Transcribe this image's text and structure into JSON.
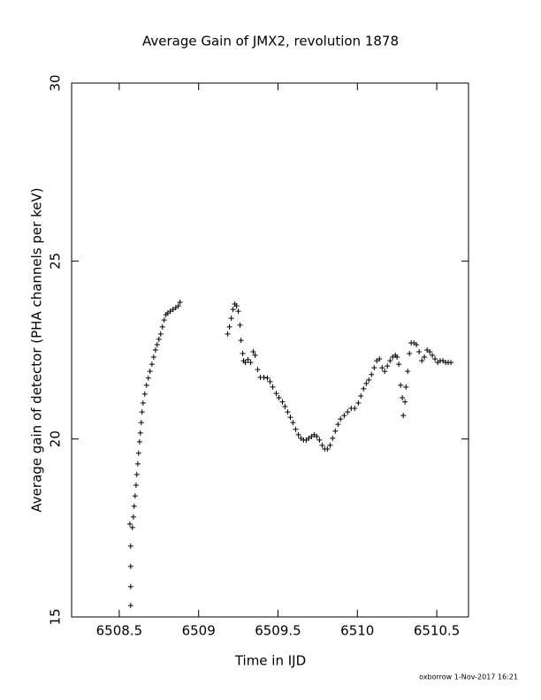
{
  "chart_data": {
    "type": "scatter",
    "title": "Average Gain of JMX2, revolution 1878",
    "x_label": "Time in IJD",
    "y_label": "Average gain of detector (PHA channels per keV)",
    "footer": "oxborrow  1-Nov-2017 16:21",
    "color": "#000000",
    "marker": "plus",
    "xlim": [
      6508.2,
      6510.7
    ],
    "ylim": [
      15,
      30
    ],
    "xticks": [
      6508.5,
      6509,
      6509.5,
      6510,
      6510.5
    ],
    "yticks": [
      15,
      20,
      25,
      30
    ],
    "x": [
      6508.572,
      6508.572,
      6508.572,
      6508.572,
      6508.567,
      6508.583,
      6508.589,
      6508.594,
      6508.6,
      6508.606,
      6508.611,
      6508.617,
      6508.622,
      6508.628,
      6508.633,
      6508.639,
      6508.644,
      6508.65,
      6508.661,
      6508.672,
      6508.683,
      6508.694,
      6508.706,
      6508.717,
      6508.728,
      6508.739,
      6508.75,
      6508.761,
      6508.772,
      6508.783,
      6508.794,
      6508.806,
      6508.822,
      6508.839,
      6508.856,
      6508.872,
      6508.883,
      6509.183,
      6509.194,
      6509.206,
      6509.217,
      6509.228,
      6509.239,
      6509.25,
      6509.261,
      6509.267,
      6509.278,
      6509.283,
      6509.294,
      6509.311,
      6509.328,
      6509.344,
      6509.356,
      6509.372,
      6509.389,
      6509.411,
      6509.433,
      6509.45,
      6509.467,
      6509.489,
      6509.506,
      6509.528,
      6509.544,
      6509.561,
      6509.578,
      6509.594,
      6509.611,
      6509.628,
      6509.644,
      6509.661,
      6509.678,
      6509.694,
      6509.711,
      6509.728,
      6509.744,
      6509.761,
      6509.778,
      6509.794,
      6509.811,
      6509.828,
      6509.844,
      6509.861,
      6509.878,
      6509.894,
      6509.917,
      6509.939,
      6509.961,
      6509.983,
      6510.006,
      6510.022,
      6510.039,
      6510.056,
      6510.072,
      6510.089,
      6510.106,
      6510.122,
      6510.139,
      6510.156,
      6510.172,
      6510.189,
      6510.206,
      6510.222,
      6510.239,
      6510.25,
      6510.261,
      6510.272,
      6510.283,
      6510.289,
      6510.3,
      6510.306,
      6510.317,
      6510.328,
      6510.339,
      6510.356,
      6510.372,
      6510.389,
      6510.406,
      6510.422,
      6510.439,
      6510.456,
      6510.472,
      6510.489,
      6510.506,
      6510.522,
      6510.539,
      6510.556,
      6510.572,
      6510.589
    ],
    "values": [
      15.32,
      15.85,
      16.42,
      16.99,
      17.61,
      17.51,
      17.81,
      18.11,
      18.4,
      18.7,
      19.0,
      19.3,
      19.6,
      19.92,
      20.17,
      20.46,
      20.76,
      21.01,
      21.26,
      21.51,
      21.71,
      21.9,
      22.1,
      22.3,
      22.5,
      22.65,
      22.8,
      22.95,
      23.15,
      23.34,
      23.49,
      23.54,
      23.59,
      23.64,
      23.69,
      23.74,
      23.84,
      22.95,
      23.15,
      23.39,
      23.64,
      23.79,
      23.74,
      23.59,
      23.2,
      22.77,
      22.4,
      22.2,
      22.15,
      22.23,
      22.15,
      22.45,
      22.35,
      21.95,
      21.73,
      21.73,
      21.71,
      21.61,
      21.46,
      21.28,
      21.16,
      21.04,
      20.91,
      20.76,
      20.61,
      20.46,
      20.27,
      20.12,
      20.02,
      19.97,
      19.97,
      20.02,
      20.07,
      20.12,
      20.07,
      19.97,
      19.82,
      19.72,
      19.72,
      19.82,
      20.02,
      20.22,
      20.41,
      20.56,
      20.66,
      20.76,
      20.86,
      20.86,
      21.01,
      21.21,
      21.41,
      21.56,
      21.66,
      21.81,
      22.0,
      22.2,
      22.25,
      22.0,
      21.9,
      22.05,
      22.2,
      22.3,
      22.35,
      22.3,
      22.1,
      21.51,
      21.16,
      20.66,
      21.04,
      21.46,
      21.9,
      22.4,
      22.7,
      22.7,
      22.65,
      22.45,
      22.2,
      22.3,
      22.5,
      22.45,
      22.35,
      22.25,
      22.15,
      22.2,
      22.2,
      22.15,
      22.15,
      22.15
    ]
  }
}
